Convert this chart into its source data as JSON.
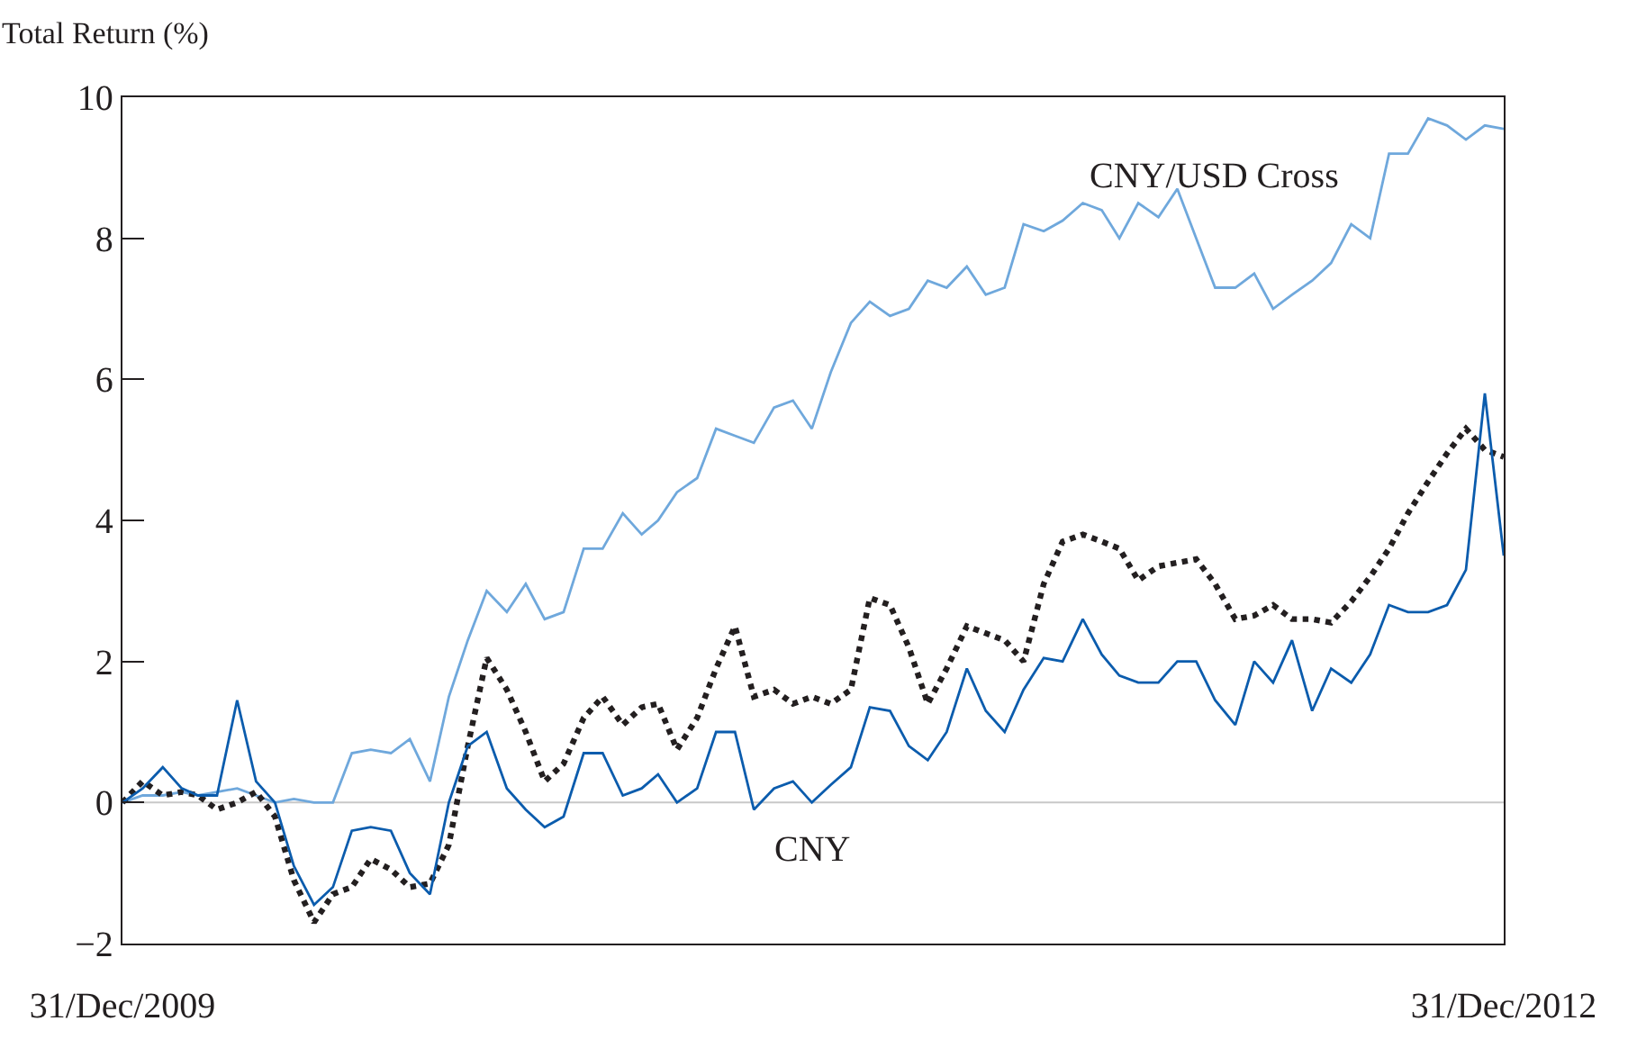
{
  "chart_data": {
    "type": "line",
    "ylabel": "Total Return (%)",
    "x": [
      "2009-12-31",
      "2010-01-16",
      "2010-02-01",
      "2010-02-16",
      "2010-03-01",
      "2010-03-16",
      "2010-04-01",
      "2010-04-16",
      "2010-05-01",
      "2010-05-16",
      "2010-06-01",
      "2010-06-16",
      "2010-07-01",
      "2010-07-16",
      "2010-08-01",
      "2010-08-16",
      "2010-09-01",
      "2010-09-16",
      "2010-10-01",
      "2010-10-16",
      "2010-11-01",
      "2010-11-16",
      "2010-12-01",
      "2010-12-16",
      "2011-01-01",
      "2011-01-16",
      "2011-02-01",
      "2011-02-16",
      "2011-03-01",
      "2011-03-16",
      "2011-04-01",
      "2011-04-16",
      "2011-05-01",
      "2011-05-16",
      "2011-06-01",
      "2011-06-16",
      "2011-07-01",
      "2011-07-16",
      "2011-08-01",
      "2011-08-16",
      "2011-09-01",
      "2011-09-16",
      "2011-10-01",
      "2011-10-16",
      "2011-11-01",
      "2011-11-16",
      "2011-12-01",
      "2011-12-16",
      "2012-01-01",
      "2012-01-16",
      "2012-02-01",
      "2012-02-16",
      "2012-03-01",
      "2012-03-16",
      "2012-04-01",
      "2012-04-16",
      "2012-05-01",
      "2012-05-16",
      "2012-06-01",
      "2012-06-16",
      "2012-07-01",
      "2012-07-16",
      "2012-08-01",
      "2012-08-16",
      "2012-09-01",
      "2012-09-16",
      "2012-10-01",
      "2012-10-16",
      "2012-11-01",
      "2012-11-16",
      "2012-12-01",
      "2012-12-16",
      "2012-12-31"
    ],
    "series": [
      {
        "name": "CNY/USD Cross",
        "color": "#6fa8dc",
        "line_style": "solid",
        "values": [
          0,
          0.1,
          0.1,
          0.15,
          0.1,
          0.15,
          0.2,
          0.1,
          0,
          0.05,
          0,
          0,
          0.7,
          0.75,
          0.7,
          0.9,
          0.3,
          1.5,
          2.3,
          3.0,
          2.7,
          3.1,
          2.6,
          2.7,
          3.6,
          3.6,
          4.1,
          3.8,
          4.0,
          4.4,
          4.6,
          5.3,
          5.2,
          5.1,
          5.6,
          5.7,
          5.3,
          6.1,
          6.8,
          7.1,
          6.9,
          7.0,
          7.4,
          7.3,
          7.6,
          7.2,
          7.3,
          8.2,
          8.1,
          8.25,
          8.5,
          8.4,
          8.0,
          8.5,
          8.3,
          8.7,
          8.0,
          7.3,
          7.3,
          7.5,
          7.0,
          7.2,
          7.4,
          7.65,
          8.2,
          8.0,
          9.2,
          9.2,
          9.7,
          9.6,
          9.4,
          9.6,
          9.55
        ]
      },
      {
        "color": "#231f20",
        "line_style": "dotted",
        "values": [
          0,
          0.3,
          0.1,
          0.15,
          0.1,
          -0.1,
          0.0,
          0.15,
          -0.2,
          -1.1,
          -1.7,
          -1.3,
          -1.2,
          -0.8,
          -0.95,
          -1.2,
          -1.15,
          -0.6,
          0.8,
          2.05,
          1.6,
          1.0,
          0.3,
          0.55,
          1.2,
          1.5,
          1.1,
          1.35,
          1.4,
          0.75,
          1.2,
          1.9,
          2.5,
          1.5,
          1.6,
          1.4,
          1.5,
          1.4,
          1.6,
          2.9,
          2.8,
          2.2,
          1.4,
          1.9,
          2.5,
          2.4,
          2.3,
          2.0,
          3.1,
          3.7,
          3.8,
          3.7,
          3.6,
          3.15,
          3.35,
          3.4,
          3.45,
          3.1,
          2.6,
          2.65,
          2.8,
          2.6,
          2.6,
          2.55,
          2.85,
          3.2,
          3.6,
          4.1,
          4.55,
          4.95,
          5.3,
          5.0,
          4.9
        ]
      },
      {
        "name": "CNY",
        "color": "#0b5cad",
        "line_style": "solid",
        "values": [
          0,
          0.2,
          0.5,
          0.2,
          0.1,
          0.1,
          1.45,
          0.3,
          0,
          -0.9,
          -1.45,
          -1.2,
          -0.4,
          -0.35,
          -0.4,
          -1.0,
          -1.3,
          0.0,
          0.8,
          1.0,
          0.2,
          -0.1,
          -0.35,
          -0.2,
          0.7,
          0.7,
          0.1,
          0.2,
          0.4,
          0.0,
          0.2,
          1.0,
          1.0,
          -0.1,
          0.2,
          0.3,
          0.0,
          0.25,
          0.5,
          1.35,
          1.3,
          0.8,
          0.6,
          1.0,
          1.9,
          1.3,
          1.0,
          1.6,
          2.05,
          2.0,
          2.6,
          2.1,
          1.8,
          1.7,
          1.7,
          2.0,
          2.0,
          1.45,
          1.1,
          2.0,
          1.7,
          2.3,
          1.3,
          1.9,
          1.7,
          2.1,
          2.8,
          2.7,
          2.7,
          2.8,
          3.3,
          5.8,
          3.5
        ]
      }
    ],
    "xlim": [
      "2009-12-31",
      "2012-12-31"
    ],
    "xticks": [
      {
        "value": "2009-12-31",
        "label": "31/Dec/2009"
      },
      {
        "value": "2012-12-31",
        "label": "31/Dec/2012"
      }
    ],
    "ylim": [
      -2,
      10
    ],
    "yticks": [
      {
        "value": -2,
        "label": "−2"
      },
      0,
      2,
      4,
      6,
      8,
      10
    ],
    "ref_lines": [
      {
        "axis": "y",
        "value": 0,
        "color": "#c8c8c8"
      }
    ],
    "grid": false,
    "legend": false,
    "marker": "none"
  }
}
